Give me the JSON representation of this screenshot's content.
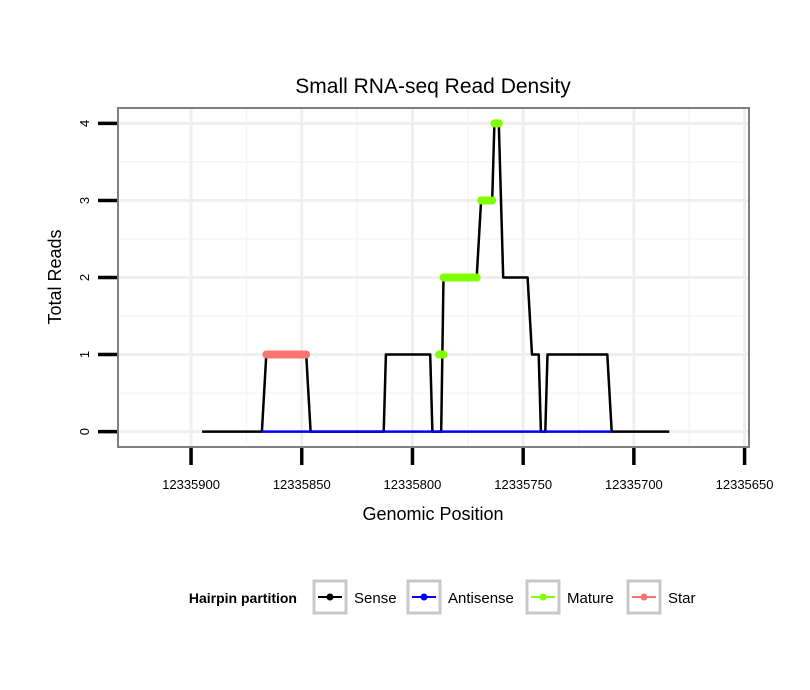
{
  "chart_data": {
    "type": "line",
    "title": "Small RNA-seq Read Density",
    "xlabel": "Genomic Position",
    "ylabel": "Total Reads",
    "x_reversed": true,
    "xlim": [
      12335933,
      12335648
    ],
    "ylim": [
      -0.2,
      4.2
    ],
    "x_ticks": [
      12335900,
      12335850,
      12335800,
      12335750,
      12335700,
      12335650
    ],
    "x_tick_labels": [
      "12335900",
      "12335850",
      "12335800",
      "12335750",
      "12335700",
      "12335650"
    ],
    "y_ticks": [
      0,
      1,
      2,
      3,
      4
    ],
    "y_tick_labels": [
      "0",
      "1",
      "2",
      "3",
      "4"
    ],
    "grid": true,
    "series": [
      {
        "name": "Sense",
        "color": "#000000",
        "points": [
          [
            12335895,
            0
          ],
          [
            12335868,
            0
          ],
          [
            12335866,
            1
          ],
          [
            12335848,
            1
          ],
          [
            12335846,
            0
          ],
          [
            12335813,
            0
          ],
          [
            12335812,
            1
          ],
          [
            12335792,
            1
          ],
          [
            12335791,
            0
          ],
          [
            12335787,
            0
          ],
          [
            12335786,
            2
          ],
          [
            12335771,
            2
          ],
          [
            12335769,
            3
          ],
          [
            12335764,
            3
          ],
          [
            12335763,
            4
          ],
          [
            12335761,
            4
          ],
          [
            12335759,
            2
          ],
          [
            12335748,
            2
          ],
          [
            12335746,
            1
          ],
          [
            12335743,
            1
          ],
          [
            12335742,
            0
          ],
          [
            12335740,
            0
          ],
          [
            12335739,
            1
          ],
          [
            12335712,
            1
          ],
          [
            12335710,
            0
          ],
          [
            12335684,
            0
          ]
        ]
      },
      {
        "name": "Antisense",
        "color": "#0000ff",
        "points": [
          [
            12335868,
            0
          ],
          [
            12335710,
            0
          ]
        ]
      },
      {
        "name": "Mature",
        "color": "#7fff00",
        "segments": [
          {
            "x1": 12335788,
            "x2": 12335786,
            "y": 1
          },
          {
            "x1": 12335786,
            "x2": 12335771,
            "y": 2
          },
          {
            "x1": 12335769,
            "x2": 12335764,
            "y": 3
          },
          {
            "x1": 12335763,
            "x2": 12335761,
            "y": 4
          }
        ]
      },
      {
        "name": "Star",
        "color": "#f8766d",
        "segments": [
          {
            "x1": 12335866,
            "x2": 12335848,
            "y": 1
          }
        ]
      }
    ],
    "legend": {
      "title": "Hairpin partition",
      "position": "bottom",
      "entries": [
        {
          "label": "Sense",
          "color": "#000000"
        },
        {
          "label": "Antisense",
          "color": "#0000ff"
        },
        {
          "label": "Mature",
          "color": "#7fff00"
        },
        {
          "label": "Star",
          "color": "#f8766d"
        }
      ]
    }
  }
}
